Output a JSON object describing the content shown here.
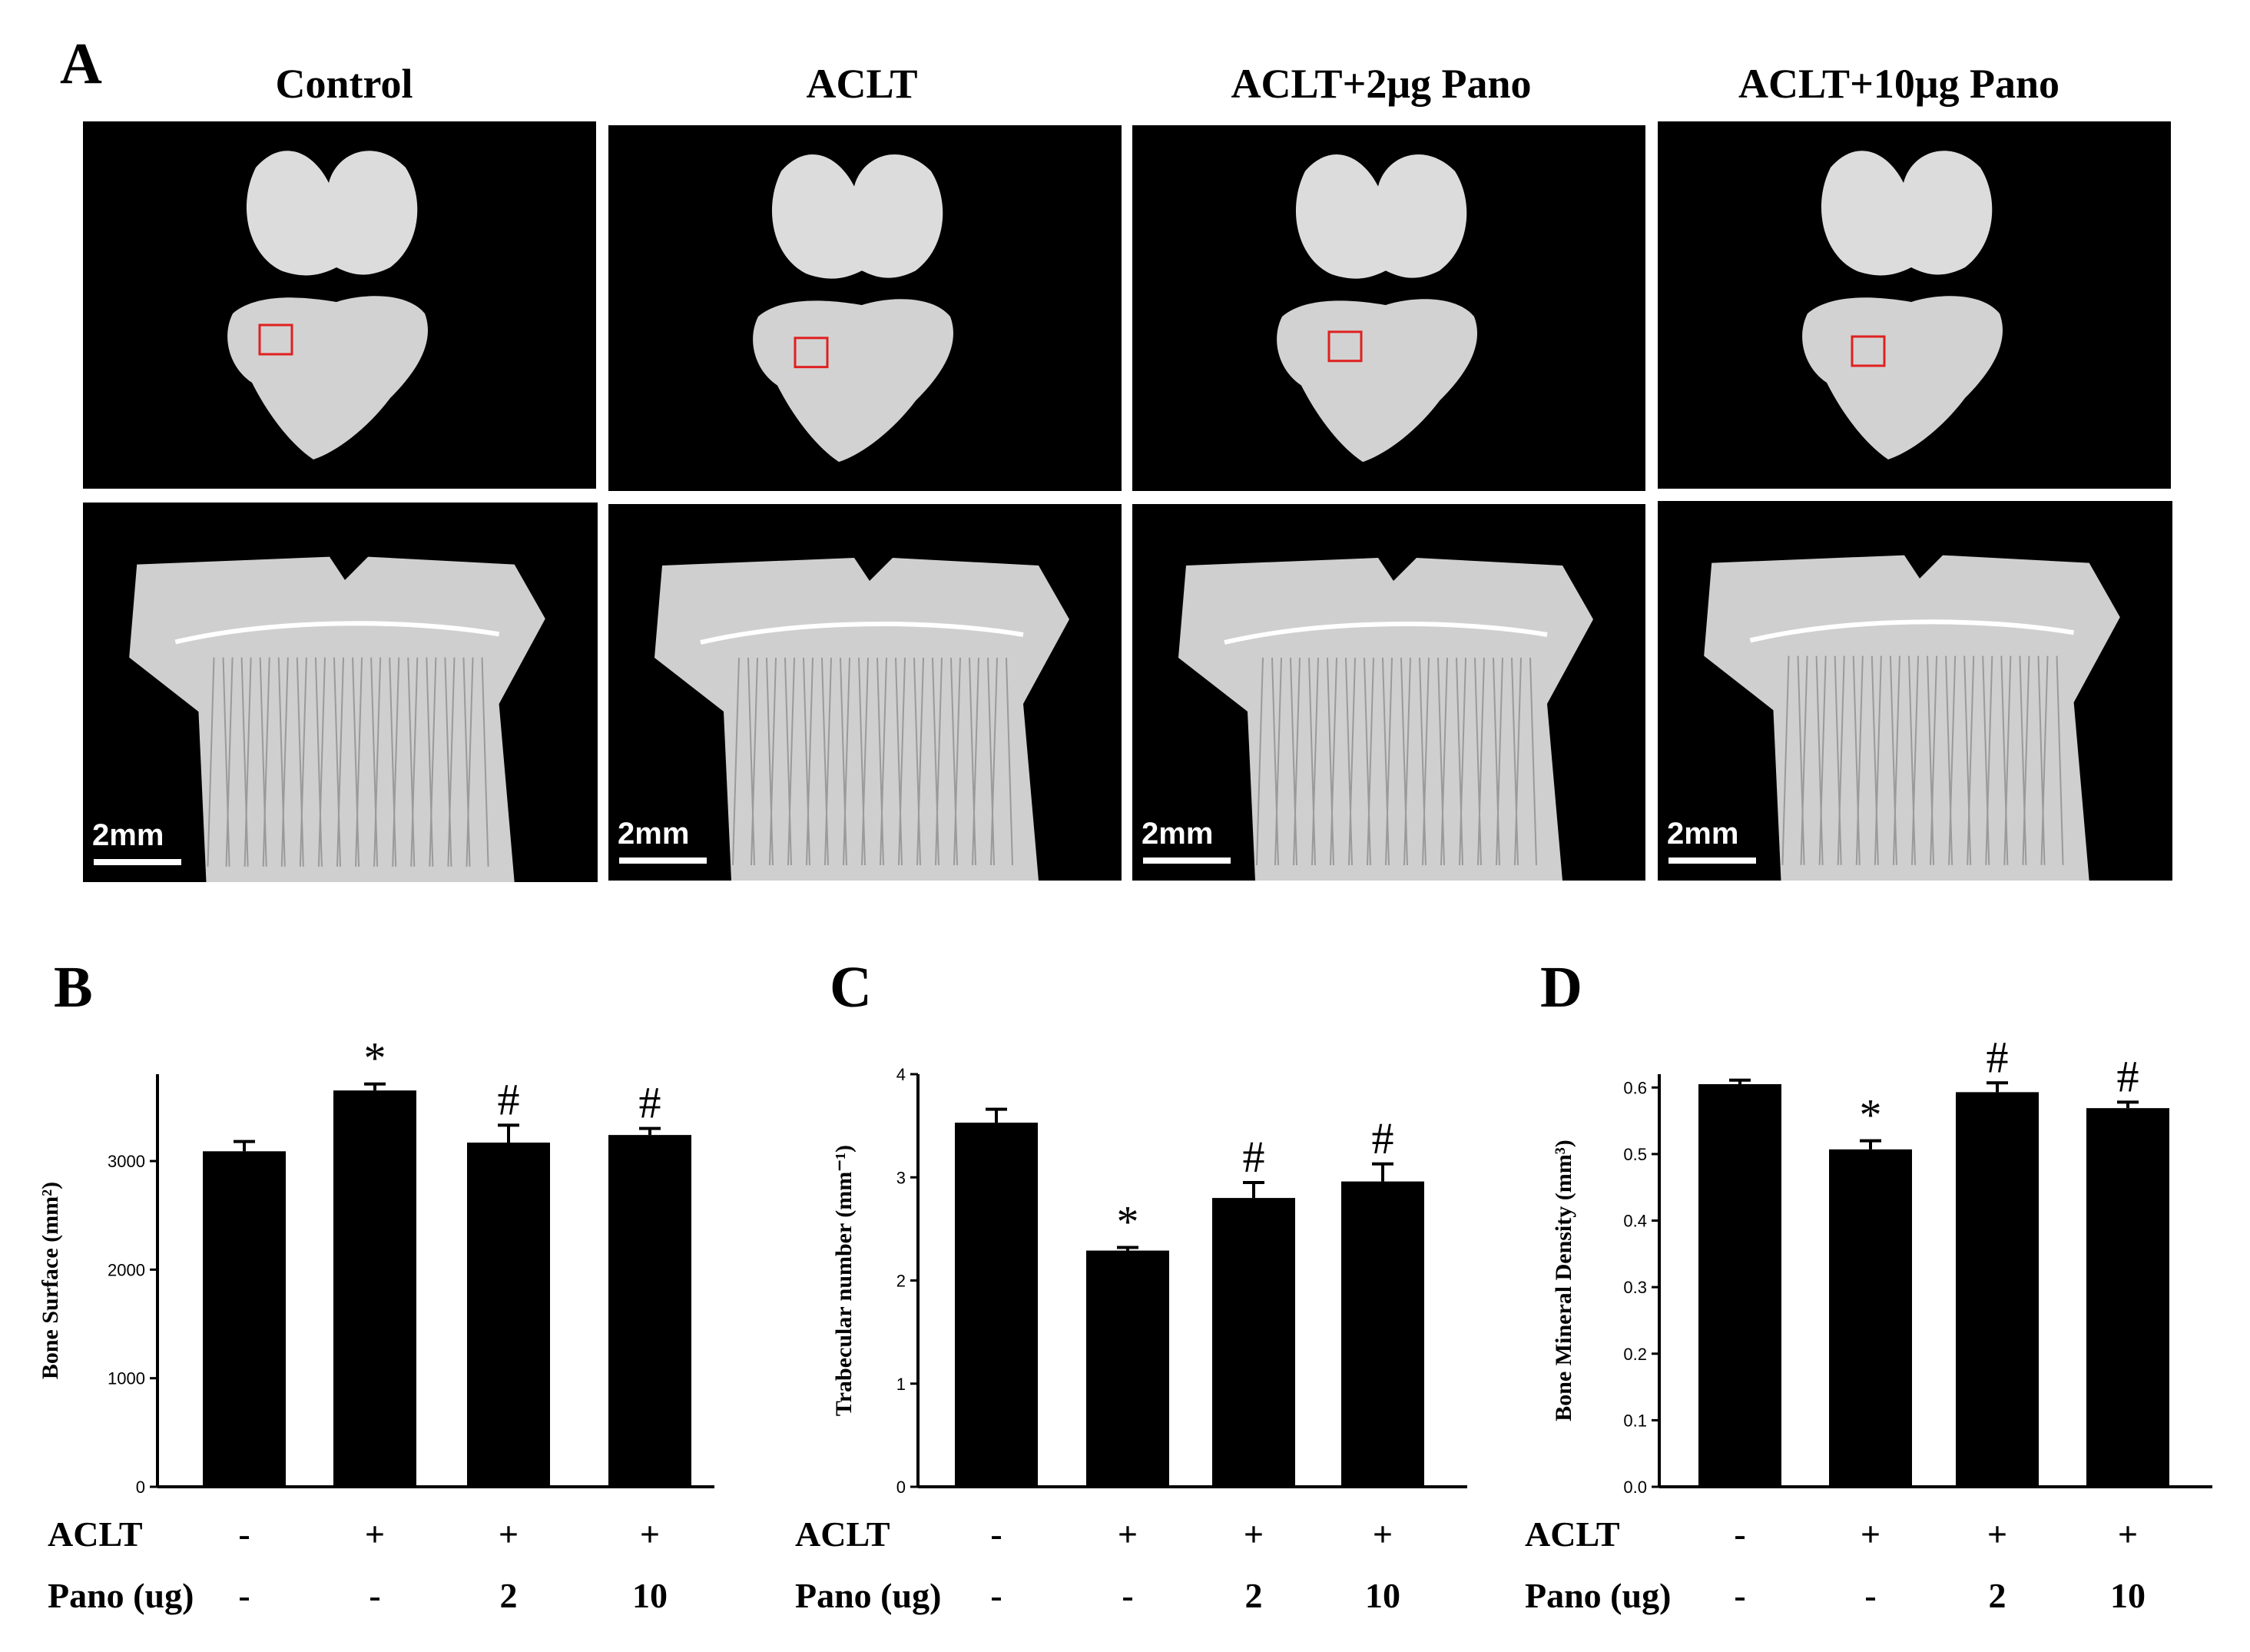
{
  "panel_a": {
    "letter": "A",
    "groups": [
      {
        "title": "Control",
        "scale_label": "2mm"
      },
      {
        "title": "ACLT",
        "scale_label": "2mm"
      },
      {
        "title": "ACLT+2μg Pano",
        "scale_label": "2mm"
      },
      {
        "title": "ACLT+10μg Pano",
        "scale_label": "2mm"
      }
    ],
    "roi_box_color": "#e02020"
  },
  "condition_table": {
    "aclt_label": "ACLT",
    "pano_label": "Pano (ug)",
    "aclt_values": [
      "-",
      "+",
      "+",
      "+"
    ],
    "pano_values": [
      "-",
      "-",
      "2",
      "10"
    ]
  },
  "chart_data": [
    {
      "letter": "B",
      "type": "bar",
      "ylabel": "Bone Surface (mm²)",
      "ylim": [
        0,
        3800
      ],
      "yticks": [
        0,
        1000,
        2000,
        3000
      ],
      "ytick_labels": [
        "0",
        "1000",
        "2000",
        "3000"
      ],
      "values": [
        3090,
        3650,
        3170,
        3240
      ],
      "errors": [
        90,
        60,
        160,
        60
      ],
      "markers": [
        "",
        "*",
        "#",
        "#"
      ],
      "bar_color": "#000000"
    },
    {
      "letter": "C",
      "type": "bar",
      "ylabel": "Trabecular number (mm⁻¹)",
      "ylim": [
        0,
        4
      ],
      "yticks": [
        0,
        1,
        2,
        3,
        4
      ],
      "ytick_labels": [
        "0",
        "1",
        "2",
        "3",
        "4"
      ],
      "values": [
        3.53,
        2.29,
        2.8,
        2.96
      ],
      "errors": [
        0.13,
        0.03,
        0.15,
        0.17
      ],
      "markers": [
        "",
        "*",
        "#",
        "#"
      ],
      "bar_color": "#000000"
    },
    {
      "letter": "D",
      "type": "bar",
      "ylabel": "Bone Mineral Density (mm³)",
      "ylim": [
        0,
        0.62
      ],
      "yticks": [
        0,
        0.1,
        0.2,
        0.3,
        0.4,
        0.5,
        0.6
      ],
      "ytick_labels": [
        "0.0",
        "0.1",
        "0.2",
        "0.3",
        "0.4",
        "0.5",
        "0.6"
      ],
      "values": [
        0.605,
        0.507,
        0.593,
        0.569
      ],
      "errors": [
        0.006,
        0.013,
        0.014,
        0.009
      ],
      "markers": [
        "",
        "*",
        "#",
        "#"
      ],
      "bar_color": "#000000"
    }
  ]
}
